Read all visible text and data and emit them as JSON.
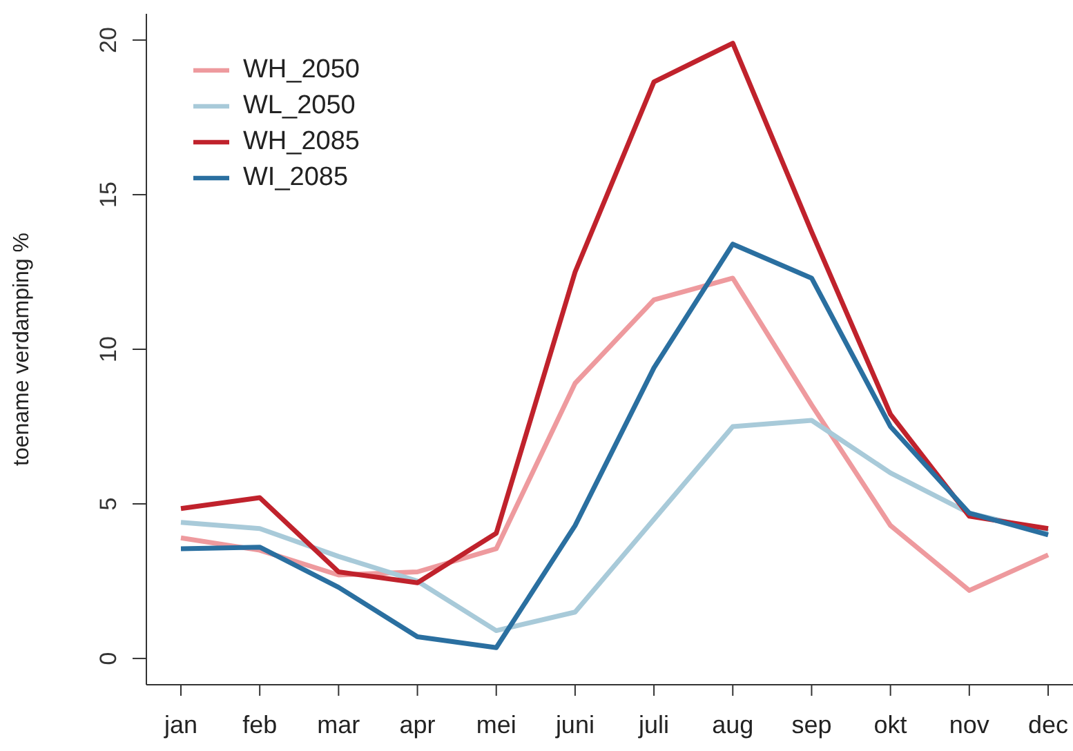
{
  "chart_data": {
    "type": "line",
    "ylabel": "toename verdamping %",
    "categories": [
      "jan",
      "feb",
      "mar",
      "apr",
      "mei",
      "juni",
      "juli",
      "aug",
      "sep",
      "okt",
      "nov",
      "dec"
    ],
    "series": [
      {
        "name": "WH_2050",
        "color": "#ee9a9e",
        "values": [
          3.9,
          3.5,
          2.7,
          2.8,
          3.55,
          8.9,
          11.6,
          12.3,
          8.2,
          4.3,
          2.2,
          3.35
        ]
      },
      {
        "name": "WL_2050",
        "color": "#a8cad9",
        "values": [
          4.4,
          4.2,
          3.3,
          2.5,
          0.9,
          1.5,
          4.5,
          7.5,
          7.7,
          6.0,
          4.7,
          4.1
        ]
      },
      {
        "name": "WH_2085",
        "color": "#c0222c",
        "values": [
          4.85,
          5.2,
          2.8,
          2.45,
          4.05,
          12.5,
          18.65,
          19.9,
          13.8,
          7.9,
          4.6,
          4.2
        ]
      },
      {
        "name": "WI_2085",
        "color": "#2a6fa0",
        "values": [
          3.55,
          3.6,
          2.3,
          0.7,
          0.35,
          4.3,
          9.4,
          13.4,
          12.3,
          7.5,
          4.7,
          4.0
        ]
      }
    ],
    "ylim": [
      -0.85,
      20.85
    ],
    "yticks": [
      0,
      5,
      10,
      15,
      20
    ],
    "grid": false,
    "legend": "top left",
    "marker": "none",
    "line_style": "solid"
  }
}
